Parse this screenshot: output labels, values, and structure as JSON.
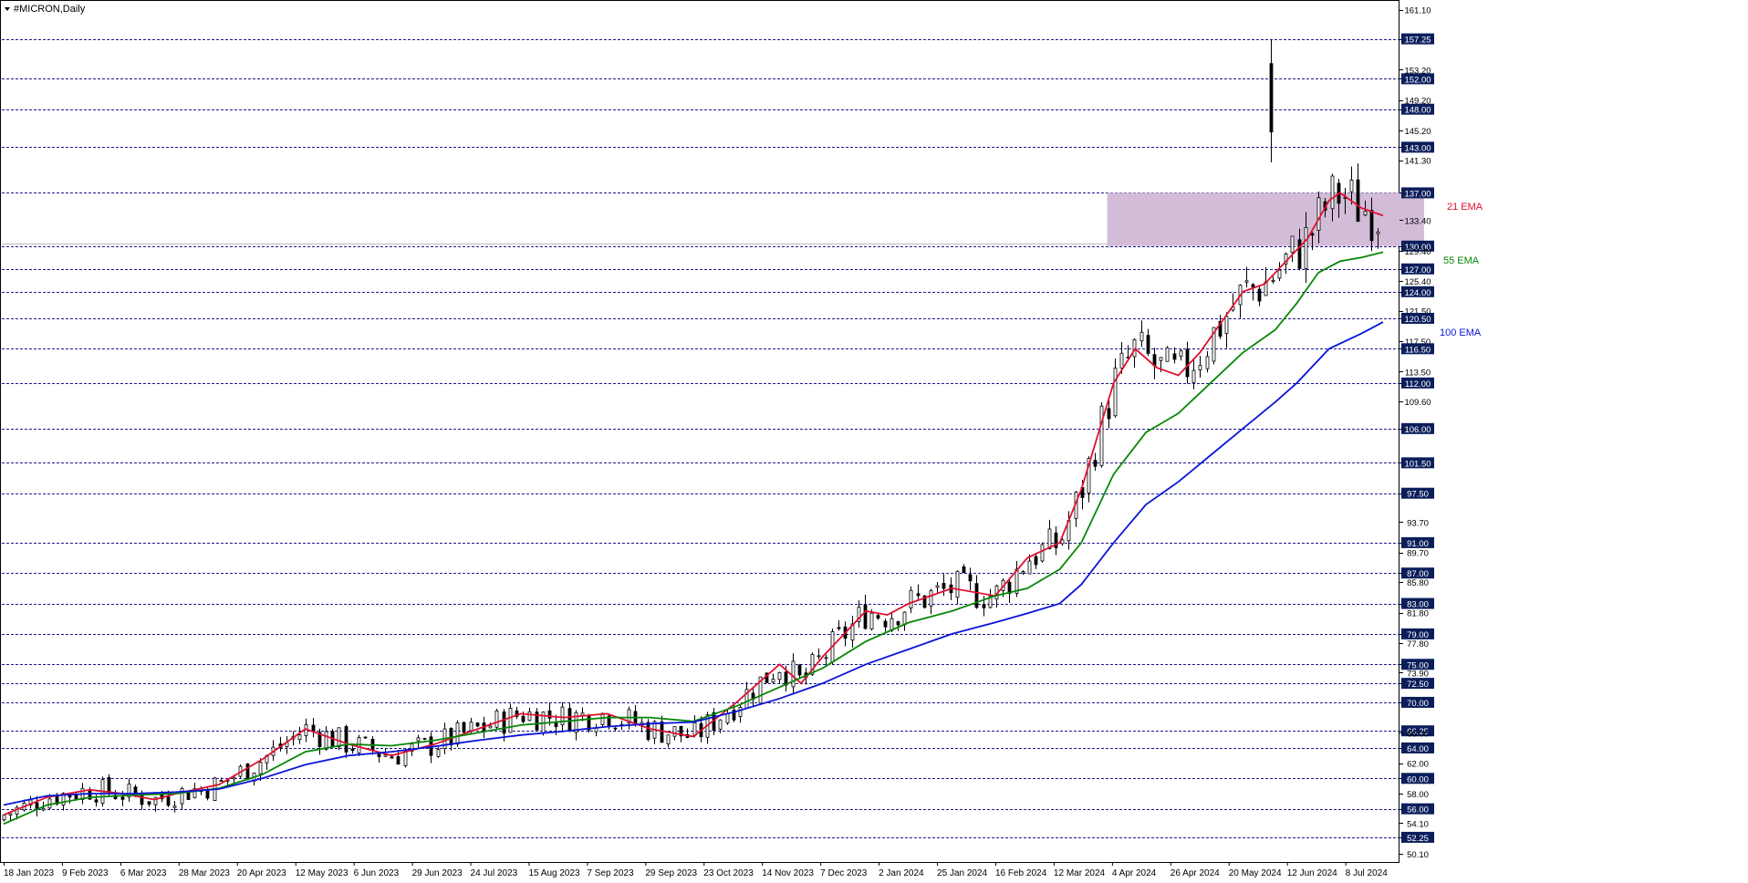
{
  "window": {
    "title": "#MICRON,Daily",
    "menu_icon": "triangle-down-icon"
  },
  "colors": {
    "background": "#ffffff",
    "candle": "#000000",
    "level_line": "#1a1a8c",
    "level_badge": "#0b1e5b",
    "ema21": "#e0102f",
    "ema55": "#078707",
    "ema100": "#0b14d9",
    "zone_fill": "#d3bcd8"
  },
  "chart_data": {
    "type": "candlestick",
    "title": "#MICRON,Daily",
    "ylim": [
      49.0,
      162.0
    ],
    "y_ticks": [
      "161.10",
      "157.25",
      "153.20",
      "152.00",
      "149.20",
      "148.00",
      "145.20",
      "143.00",
      "141.30",
      "137.00",
      "133.40",
      "130.00",
      "129.40",
      "127.00",
      "125.40",
      "124.00",
      "121.50",
      "120.50",
      "117.50",
      "116.50",
      "113.50",
      "112.00",
      "109.60",
      "106.00",
      "101.50",
      "97.50",
      "93.70",
      "91.00",
      "89.70",
      "87.00",
      "85.80",
      "83.00",
      "81.80",
      "79.00",
      "77.80",
      "75.00",
      "73.90",
      "72.50",
      "70.00",
      "66.25",
      "66.00",
      "64.00",
      "62.00",
      "60.00",
      "58.00",
      "56.00",
      "54.10",
      "52.25",
      "50.10"
    ],
    "x_tick_labels": [
      "18 Jan 2023",
      "9 Feb 2023",
      "6 Mar 2023",
      "28 Mar 2023",
      "20 Apr 2023",
      "12 May 2023",
      "6 Jun 2023",
      "29 Jun 2023",
      "24 Jul 2023",
      "15 Aug 2023",
      "7 Sep 2023",
      "29 Sep 2023",
      "23 Oct 2023",
      "14 Nov 2023",
      "7 Dec 2023",
      "2 Jan 2024",
      "25 Jan 2024",
      "16 Feb 2024",
      "12 Mar 2024",
      "4 Apr 2024",
      "26 Apr 2024",
      "20 May 2024",
      "12 Jun 2024",
      "8 Jul 2024"
    ],
    "horizontal_levels": [
      "157.25",
      "152.00",
      "148.00",
      "143.00",
      "137.00",
      "130.00",
      "127.00",
      "124.00",
      "120.50",
      "116.50",
      "112.00",
      "106.00",
      "101.50",
      "97.50",
      "91.00",
      "87.00",
      "83.00",
      "79.00",
      "75.00",
      "72.50",
      "70.00",
      "66.25",
      "64.00",
      "60.00",
      "56.00",
      "52.25"
    ],
    "zone": {
      "low": 130.0,
      "high": 137.0,
      "start": "20 Mar 2024",
      "end": "Jul 2024"
    },
    "series": [
      {
        "name": "21 EMA",
        "type": "line",
        "points": [
          [
            0,
            55.2
          ],
          [
            20,
            57.5
          ],
          [
            40,
            58.5
          ],
          [
            55,
            58.0
          ],
          [
            70,
            57.2
          ],
          [
            80,
            58.0
          ],
          [
            100,
            59.2
          ],
          [
            120,
            62.5
          ],
          [
            140,
            66.5
          ],
          [
            160,
            64.5
          ],
          [
            180,
            63.0
          ],
          [
            200,
            64.5
          ],
          [
            220,
            66.5
          ],
          [
            240,
            68.5
          ],
          [
            260,
            68.0
          ],
          [
            280,
            68.5
          ],
          [
            300,
            66.5
          ],
          [
            320,
            65.5
          ],
          [
            340,
            70.0
          ],
          [
            360,
            75.0
          ],
          [
            370,
            72.5
          ],
          [
            380,
            76.0
          ],
          [
            400,
            82.0
          ],
          [
            410,
            81.5
          ],
          [
            420,
            83.0
          ],
          [
            440,
            85.0
          ],
          [
            460,
            84.0
          ],
          [
            475,
            89.0
          ],
          [
            490,
            91.0
          ],
          [
            500,
            98.0
          ],
          [
            515,
            112.0
          ],
          [
            525,
            116.5
          ],
          [
            535,
            114.0
          ],
          [
            545,
            113.0
          ],
          [
            555,
            116.0
          ],
          [
            565,
            120.0
          ],
          [
            575,
            124.0
          ],
          [
            585,
            125.0
          ],
          [
            595,
            128.0
          ],
          [
            605,
            131.0
          ],
          [
            615,
            136.0
          ],
          [
            620,
            137.0
          ],
          [
            630,
            135.0
          ],
          [
            640,
            134.0
          ]
        ]
      },
      {
        "name": "55 EMA",
        "type": "line",
        "points": [
          [
            0,
            54.0
          ],
          [
            20,
            56.5
          ],
          [
            40,
            57.5
          ],
          [
            60,
            57.8
          ],
          [
            80,
            58.0
          ],
          [
            100,
            58.7
          ],
          [
            120,
            60.5
          ],
          [
            140,
            63.5
          ],
          [
            160,
            64.5
          ],
          [
            180,
            64.3
          ],
          [
            200,
            65.0
          ],
          [
            220,
            66.0
          ],
          [
            240,
            67.0
          ],
          [
            260,
            67.5
          ],
          [
            280,
            68.0
          ],
          [
            300,
            68.0
          ],
          [
            320,
            67.5
          ],
          [
            340,
            69.5
          ],
          [
            360,
            72.0
          ],
          [
            380,
            74.5
          ],
          [
            400,
            78.0
          ],
          [
            420,
            80.5
          ],
          [
            440,
            82.0
          ],
          [
            460,
            84.0
          ],
          [
            475,
            85.0
          ],
          [
            490,
            87.5
          ],
          [
            500,
            91.0
          ],
          [
            515,
            100.0
          ],
          [
            530,
            105.5
          ],
          [
            545,
            108.0
          ],
          [
            560,
            112.0
          ],
          [
            575,
            116.0
          ],
          [
            590,
            119.0
          ],
          [
            600,
            122.5
          ],
          [
            610,
            126.5
          ],
          [
            620,
            128.0
          ],
          [
            630,
            128.5
          ],
          [
            640,
            129.2
          ]
        ]
      },
      {
        "name": "100 EMA",
        "type": "line",
        "points": [
          [
            0,
            56.5
          ],
          [
            20,
            57.7
          ],
          [
            40,
            58.0
          ],
          [
            60,
            58.0
          ],
          [
            80,
            58.2
          ],
          [
            100,
            58.6
          ],
          [
            120,
            60.0
          ],
          [
            140,
            61.8
          ],
          [
            160,
            63.0
          ],
          [
            180,
            63.5
          ],
          [
            200,
            64.2
          ],
          [
            220,
            65.0
          ],
          [
            240,
            65.7
          ],
          [
            260,
            66.2
          ],
          [
            280,
            66.8
          ],
          [
            300,
            67.2
          ],
          [
            320,
            67.4
          ],
          [
            340,
            68.8
          ],
          [
            360,
            70.5
          ],
          [
            380,
            72.5
          ],
          [
            400,
            75.0
          ],
          [
            420,
            77.0
          ],
          [
            440,
            79.0
          ],
          [
            460,
            80.5
          ],
          [
            475,
            81.7
          ],
          [
            490,
            83.0
          ],
          [
            500,
            85.5
          ],
          [
            515,
            91.0
          ],
          [
            530,
            96.0
          ],
          [
            545,
            99.0
          ],
          [
            560,
            102.5
          ],
          [
            575,
            106.0
          ],
          [
            590,
            109.5
          ],
          [
            600,
            112.0
          ],
          [
            615,
            116.5
          ],
          [
            630,
            118.5
          ],
          [
            640,
            120.0
          ]
        ]
      }
    ],
    "annotations": [
      {
        "text": "21 EMA",
        "color": "#e0102f"
      },
      {
        "text": "55 EMA",
        "color": "#078707"
      },
      {
        "text": "100 EMA",
        "color": "#0b14d9"
      }
    ]
  }
}
